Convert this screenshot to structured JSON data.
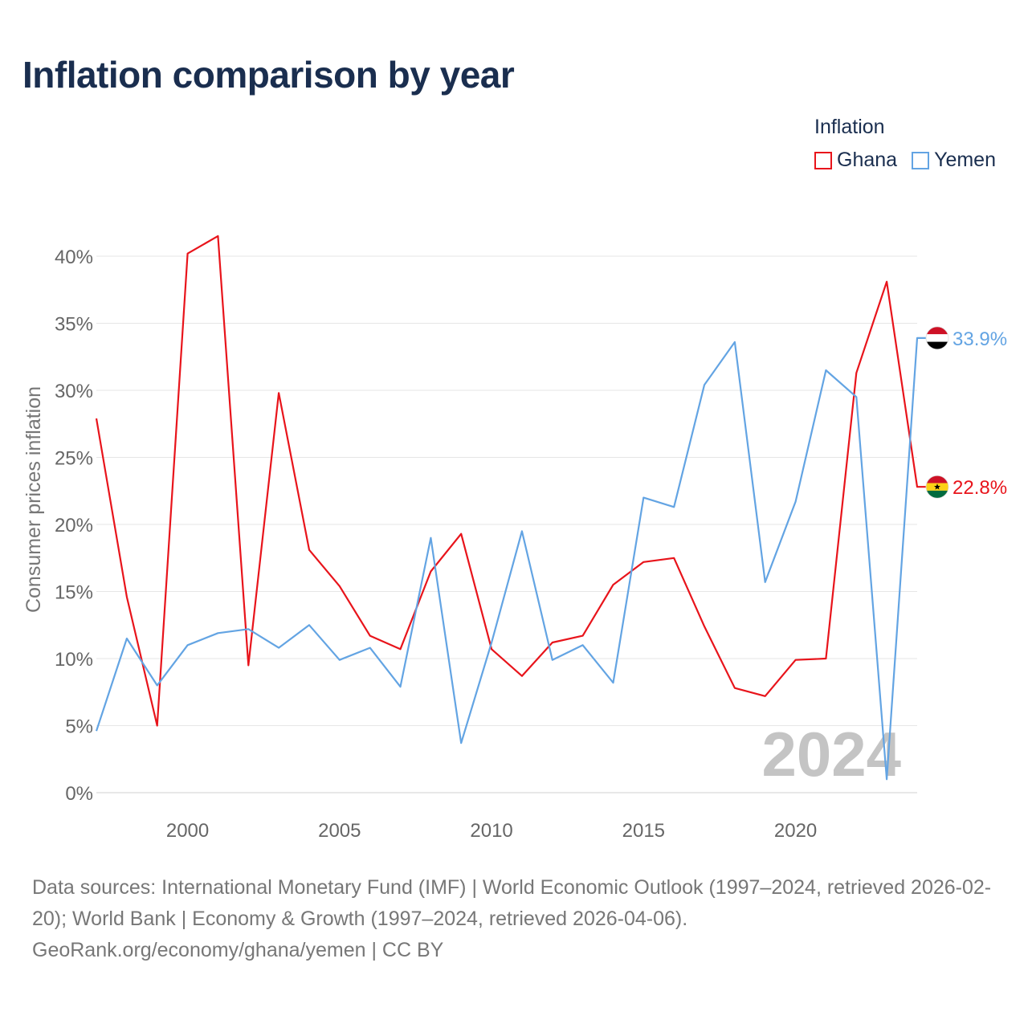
{
  "title": "Inflation comparison by year",
  "legend": {
    "title": "Inflation",
    "items": [
      {
        "name": "Ghana",
        "color": "#e8141b"
      },
      {
        "name": "Yemen",
        "color": "#63a4e3"
      }
    ]
  },
  "watermark_year": "2024",
  "footer": {
    "sources": "Data sources: International Monetary Fund (IMF) | World Economic Outlook (1997–2024, retrieved 2026-02-20); World Bank | Economy & Growth (1997–2024, retrieved 2026-04-06).",
    "attribution": "GeoRank.org/economy/ghana/yemen | CC BY"
  },
  "chart_data": {
    "type": "line",
    "title": "Inflation comparison by year",
    "xlabel": "",
    "ylabel": "Consumer prices inflation",
    "xlim": [
      1997,
      2024
    ],
    "ylim": [
      0,
      40
    ],
    "x_ticks": [
      2000,
      2005,
      2010,
      2015,
      2020
    ],
    "y_ticks": [
      0,
      5,
      10,
      15,
      20,
      25,
      30,
      35,
      40
    ],
    "y_tick_labels": [
      "0%",
      "5%",
      "10%",
      "15%",
      "20%",
      "25%",
      "30%",
      "35%",
      "40%"
    ],
    "grid": true,
    "x": [
      1997,
      1998,
      1999,
      2000,
      2001,
      2002,
      2003,
      2004,
      2005,
      2006,
      2007,
      2008,
      2009,
      2010,
      2011,
      2012,
      2013,
      2014,
      2015,
      2016,
      2017,
      2018,
      2019,
      2020,
      2021,
      2022,
      2023,
      2024
    ],
    "series": [
      {
        "name": "Ghana",
        "color": "#e8141b",
        "end_label": "22.8%",
        "values": [
          27.9,
          14.6,
          5.0,
          40.2,
          41.5,
          9.5,
          29.8,
          18.1,
          15.4,
          11.7,
          10.7,
          16.5,
          19.3,
          10.7,
          8.7,
          11.2,
          11.7,
          15.5,
          17.2,
          17.5,
          12.4,
          7.8,
          7.2,
          9.9,
          10.0,
          31.3,
          38.1,
          22.8
        ]
      },
      {
        "name": "Yemen",
        "color": "#63a4e3",
        "end_label": "33.9%",
        "values": [
          4.6,
          11.5,
          8.0,
          11.0,
          11.9,
          12.2,
          10.8,
          12.5,
          9.9,
          10.8,
          7.9,
          19.0,
          3.7,
          11.2,
          19.5,
          9.9,
          11.0,
          8.2,
          22.0,
          21.3,
          30.4,
          33.6,
          15.7,
          21.7,
          31.5,
          29.5,
          1.0,
          33.9
        ]
      }
    ]
  }
}
